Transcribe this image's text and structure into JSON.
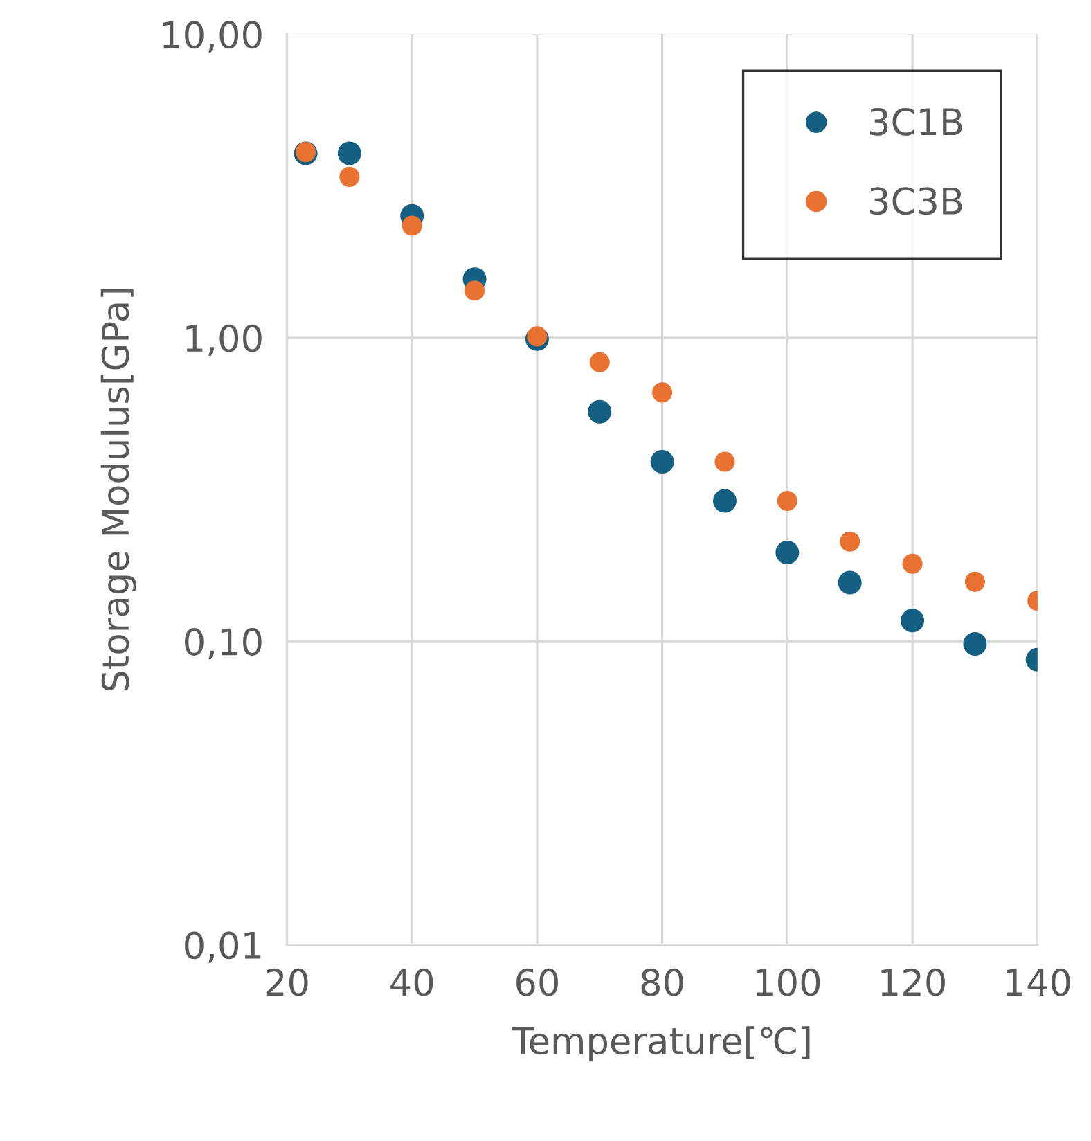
{
  "chart_data": {
    "type": "scatter",
    "xlabel": "Temperature[℃]",
    "ylabel": "Storage Modulus[GPa]",
    "log": "y",
    "xlim": [
      20,
      140
    ],
    "xticks": [
      20,
      40,
      60,
      80,
      100,
      120,
      140
    ],
    "ylim": [
      0.01,
      10
    ],
    "yticks": [
      {
        "value": 0.01,
        "label": "0,01"
      },
      {
        "value": 0.1,
        "label": "0,10"
      },
      {
        "value": 1,
        "label": "1,00"
      },
      {
        "value": 10,
        "label": "10,00"
      }
    ],
    "grid": true,
    "legend": "top right",
    "marker": "circle",
    "series": [
      {
        "name": "3C1B",
        "color": "#156082",
        "x": [
          23,
          30,
          40,
          50,
          60,
          70,
          80,
          90,
          100,
          110,
          120,
          130,
          140
        ],
        "values": [
          4.05,
          4.05,
          2.52,
          1.56,
          0.99,
          0.57,
          0.39,
          0.29,
          0.196,
          0.156,
          0.117,
          0.098,
          0.087
        ]
      },
      {
        "name": "3C3B",
        "color": "#e97132",
        "x": [
          23,
          30,
          40,
          50,
          60,
          70,
          80,
          90,
          100,
          110,
          120,
          130,
          140
        ],
        "values": [
          4.09,
          3.39,
          2.34,
          1.43,
          1.01,
          0.83,
          0.66,
          0.39,
          0.29,
          0.213,
          0.18,
          0.157,
          0.136
        ]
      }
    ]
  }
}
